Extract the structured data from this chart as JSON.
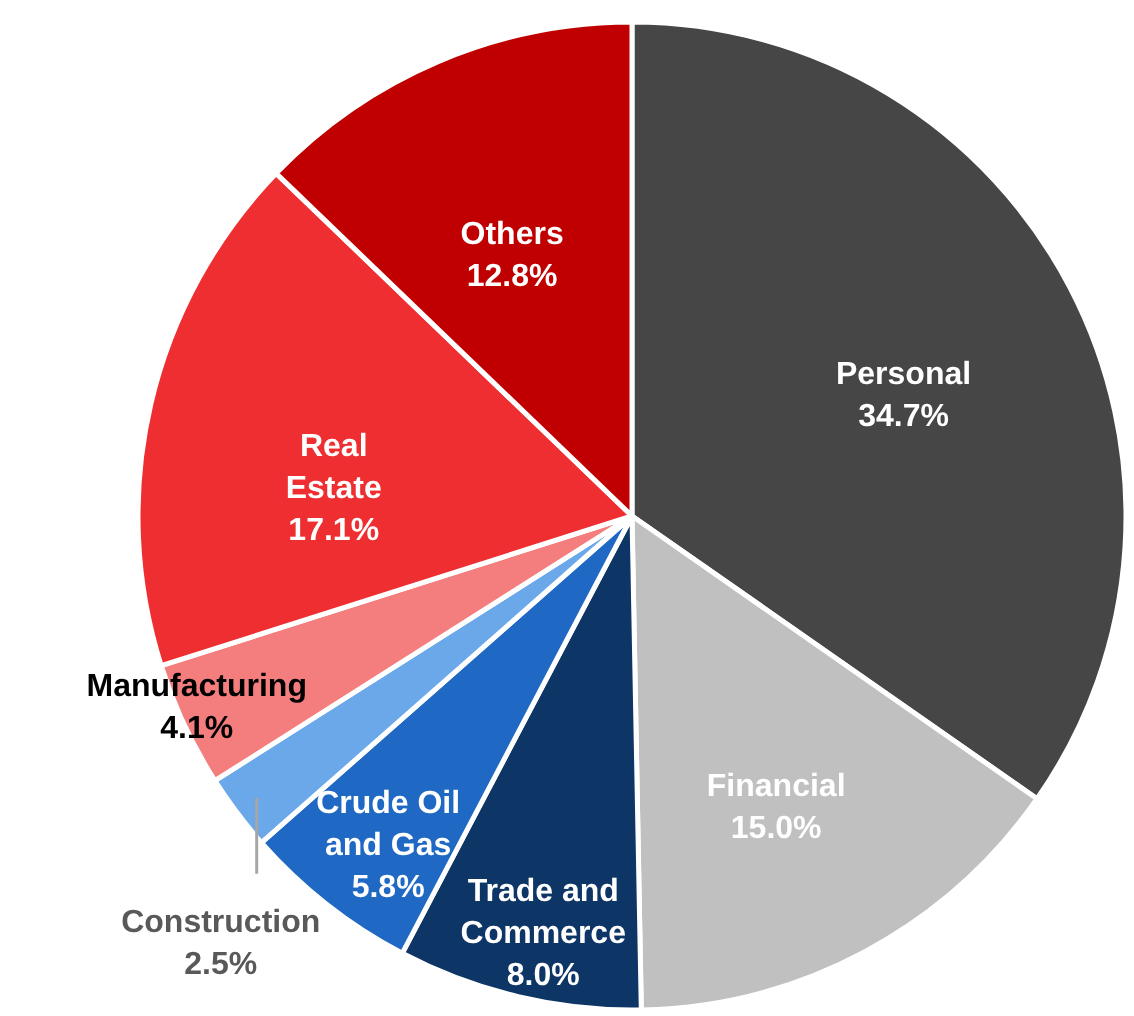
{
  "chart_data": {
    "type": "pie",
    "categories": [
      "Personal",
      "Financial",
      "Trade and Commerce",
      "Crude Oil and Gas",
      "Construction",
      "Manufacturing",
      "Real Estate",
      "Others"
    ],
    "values": [
      34.7,
      15.0,
      8.0,
      5.8,
      2.5,
      4.1,
      17.1,
      12.8
    ],
    "value_labels": [
      "34.7%",
      "15.0%",
      "8.0%",
      "5.8%",
      "2.5%",
      "4.1%",
      "17.1%",
      "12.8%"
    ],
    "colors": [
      "#464646",
      "#c0c0c0",
      "#0d3566",
      "#1f68c4",
      "#6aa8ea",
      "#f47d7d",
      "#ee2e31",
      "#c00000"
    ]
  }
}
